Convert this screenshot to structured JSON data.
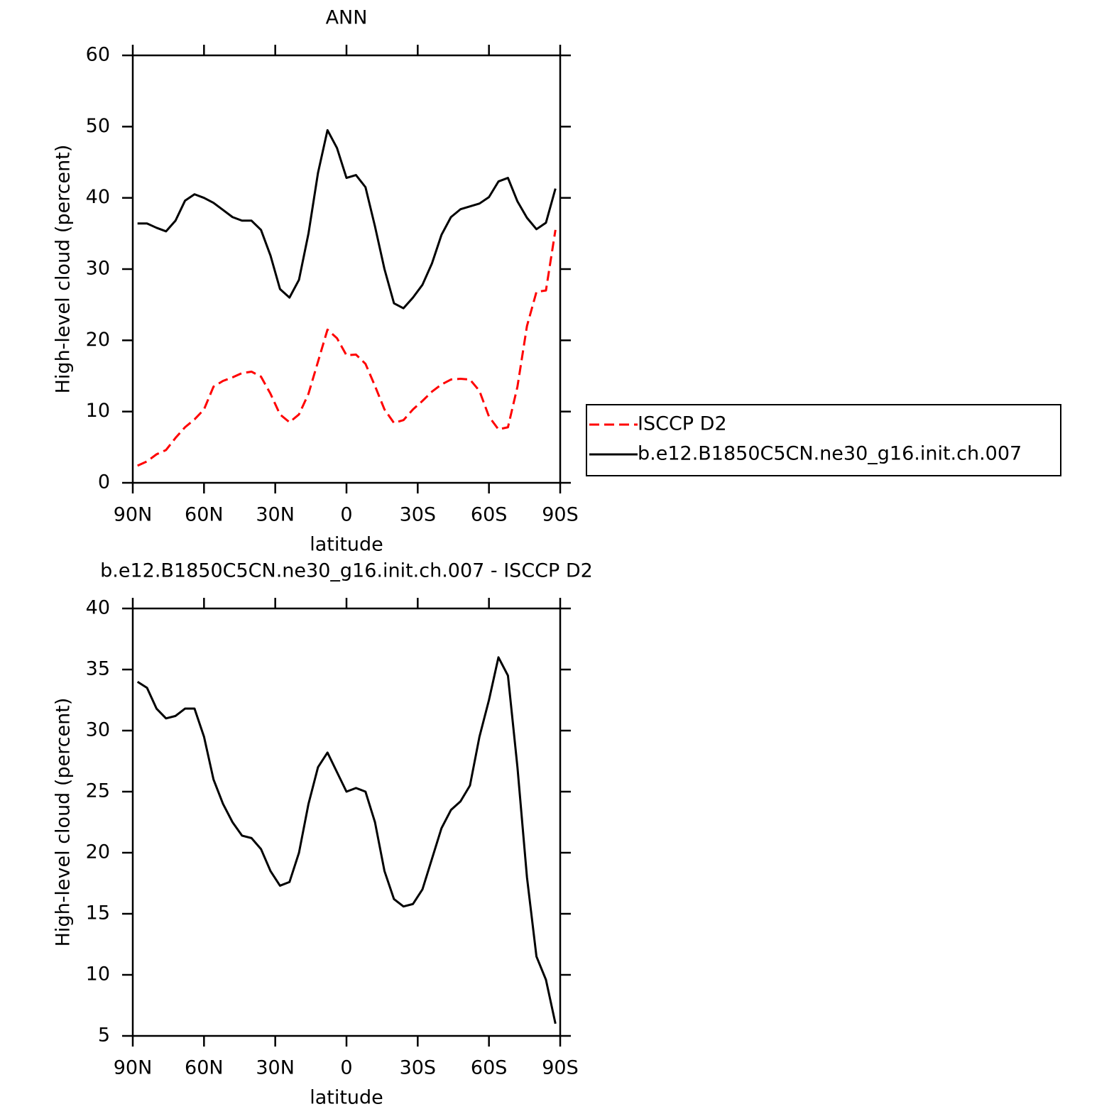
{
  "chart_data": [
    {
      "type": "line",
      "title": "ANN",
      "xlabel": "latitude",
      "ylabel": "High-level cloud (percent)",
      "xlim": [
        90,
        -90
      ],
      "xticks": [
        {
          "value": 90,
          "label": "90N"
        },
        {
          "value": 60,
          "label": "60N"
        },
        {
          "value": 30,
          "label": "30N"
        },
        0,
        {
          "value": -30,
          "label": "30S"
        },
        {
          "value": -60,
          "label": "60S"
        },
        {
          "value": -90,
          "label": "90S"
        }
      ],
      "ylim": [
        0,
        60
      ],
      "yticks": [
        0,
        10,
        20,
        30,
        40,
        50,
        60
      ],
      "x": [
        88,
        84,
        80,
        76,
        72,
        68,
        64,
        60,
        56,
        52,
        48,
        44,
        40,
        36,
        32,
        28,
        24,
        20,
        16,
        12,
        8,
        4,
        0,
        -4,
        -8,
        -12,
        -16,
        -20,
        -24,
        -28,
        -32,
        -36,
        -40,
        -44,
        -48,
        -52,
        -56,
        -60,
        -64,
        -68,
        -72,
        -76,
        -80,
        -84,
        -88
      ],
      "legend": "right",
      "series": [
        {
          "name": "ISCCP D2",
          "color": "#ff0000",
          "line_style": "dashed",
          "values": [
            2.4,
            3.0,
            4.0,
            4.6,
            6.3,
            7.8,
            8.9,
            10.3,
            13.5,
            14.3,
            14.8,
            15.4,
            15.6,
            14.9,
            12.5,
            9.6,
            8.5,
            9.6,
            12.5,
            17.0,
            21.5,
            20.3,
            17.9,
            18.0,
            16.7,
            13.6,
            10.3,
            8.4,
            8.8,
            10.3,
            11.5,
            12.8,
            13.8,
            14.5,
            14.6,
            14.5,
            12.9,
            9.3,
            7.5,
            7.8,
            13.5,
            22.0,
            26.8,
            27.0,
            35.5
          ]
        },
        {
          "name": "b.e12.B1850C5CN.ne30_g16.init.ch.007",
          "color": "#000000",
          "line_style": "solid",
          "values": [
            36.4,
            36.4,
            35.8,
            35.3,
            36.8,
            39.6,
            40.5,
            40.0,
            39.3,
            38.3,
            37.3,
            36.8,
            36.8,
            35.5,
            31.9,
            27.2,
            26.0,
            28.5,
            35.0,
            43.5,
            49.5,
            47.0,
            42.8,
            43.2,
            41.5,
            36.0,
            30.0,
            25.2,
            24.5,
            26.0,
            27.8,
            30.8,
            34.8,
            37.3,
            38.4,
            38.8,
            39.2,
            40.1,
            42.3,
            42.8,
            39.5,
            37.2,
            35.6,
            36.5,
            41.3
          ]
        }
      ]
    },
    {
      "type": "line",
      "title": "b.e12.B1850C5CN.ne30_g16.init.ch.007 - ISCCP D2",
      "xlabel": "latitude",
      "ylabel": "High-level cloud (percent)",
      "xlim": [
        90,
        -90
      ],
      "xticks": [
        {
          "value": 90,
          "label": "90N"
        },
        {
          "value": 60,
          "label": "60N"
        },
        {
          "value": 30,
          "label": "30N"
        },
        0,
        {
          "value": -30,
          "label": "30S"
        },
        {
          "value": -60,
          "label": "60S"
        },
        {
          "value": -90,
          "label": "90S"
        }
      ],
      "ylim": [
        5,
        40
      ],
      "yticks": [
        5,
        10,
        15,
        20,
        25,
        30,
        35,
        40
      ],
      "x": [
        88,
        84,
        80,
        76,
        72,
        68,
        64,
        60,
        56,
        52,
        48,
        44,
        40,
        36,
        32,
        28,
        24,
        20,
        16,
        12,
        8,
        4,
        0,
        -4,
        -8,
        -12,
        -16,
        -20,
        -24,
        -28,
        -32,
        -36,
        -40,
        -44,
        -48,
        -52,
        -56,
        -60,
        -64,
        -68,
        -72,
        -76,
        -80,
        -84,
        -88
      ],
      "color": "#000000",
      "values": [
        34.0,
        33.5,
        31.8,
        31.0,
        31.2,
        31.8,
        31.8,
        29.5,
        26.0,
        24.0,
        22.5,
        21.4,
        21.2,
        20.3,
        18.5,
        17.3,
        17.6,
        20.0,
        24.0,
        27.0,
        28.2,
        26.6,
        25.0,
        25.3,
        25.0,
        22.5,
        18.5,
        16.2,
        15.6,
        15.8,
        17.0,
        19.5,
        22.0,
        23.5,
        24.2,
        25.5,
        29.5,
        32.5,
        36.0,
        34.5,
        27.0,
        18.0,
        11.5,
        9.6,
        6.0
      ]
    }
  ]
}
